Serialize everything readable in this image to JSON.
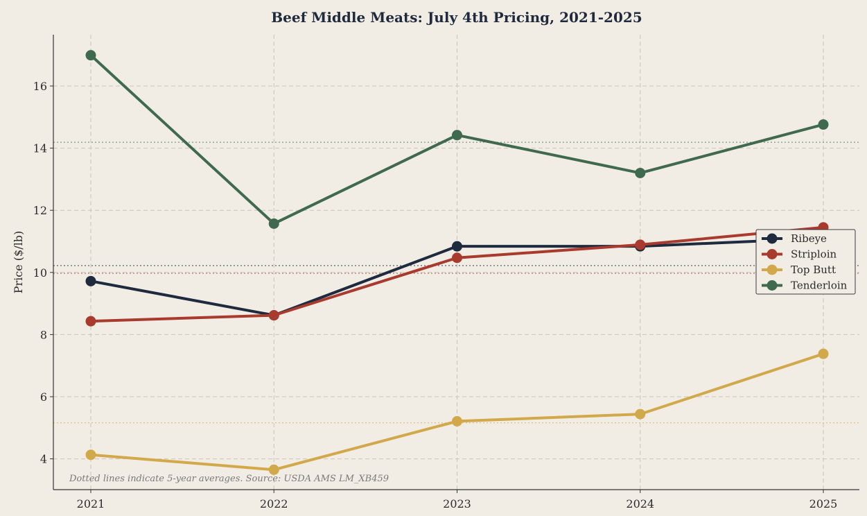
{
  "chart_data": {
    "type": "line",
    "title": "Beef Middle Meats: July 4th Pricing, 2021-2025",
    "xlabel": "",
    "ylabel": "Price ($/lb)",
    "x": [
      "2021",
      "2022",
      "2023",
      "2024",
      "2025"
    ],
    "ylim": [
      3,
      17.6
    ],
    "yticks": [
      4,
      6,
      8,
      10,
      12,
      14,
      16
    ],
    "grid": true,
    "legend_position": "center-right",
    "series": [
      {
        "name": "Ribeye",
        "color": "#1e2a3e",
        "values": [
          9.72,
          8.62,
          10.84,
          10.84,
          11.1
        ],
        "average": 10.22
      },
      {
        "name": "Striploin",
        "color": "#a93a2e",
        "values": [
          8.43,
          8.62,
          10.47,
          10.89,
          11.45
        ],
        "average": 9.97
      },
      {
        "name": "Top Butt",
        "color": "#d1a94a",
        "values": [
          4.13,
          3.65,
          5.21,
          5.44,
          7.38
        ],
        "average": 5.16
      },
      {
        "name": "Tenderloin",
        "color": "#3f6a4d",
        "values": [
          16.99,
          11.57,
          14.42,
          13.2,
          14.76
        ],
        "average": 14.19
      }
    ],
    "annotation": "Dotted lines indicate 5-year averages. Source: USDA AMS LM_XB459"
  }
}
